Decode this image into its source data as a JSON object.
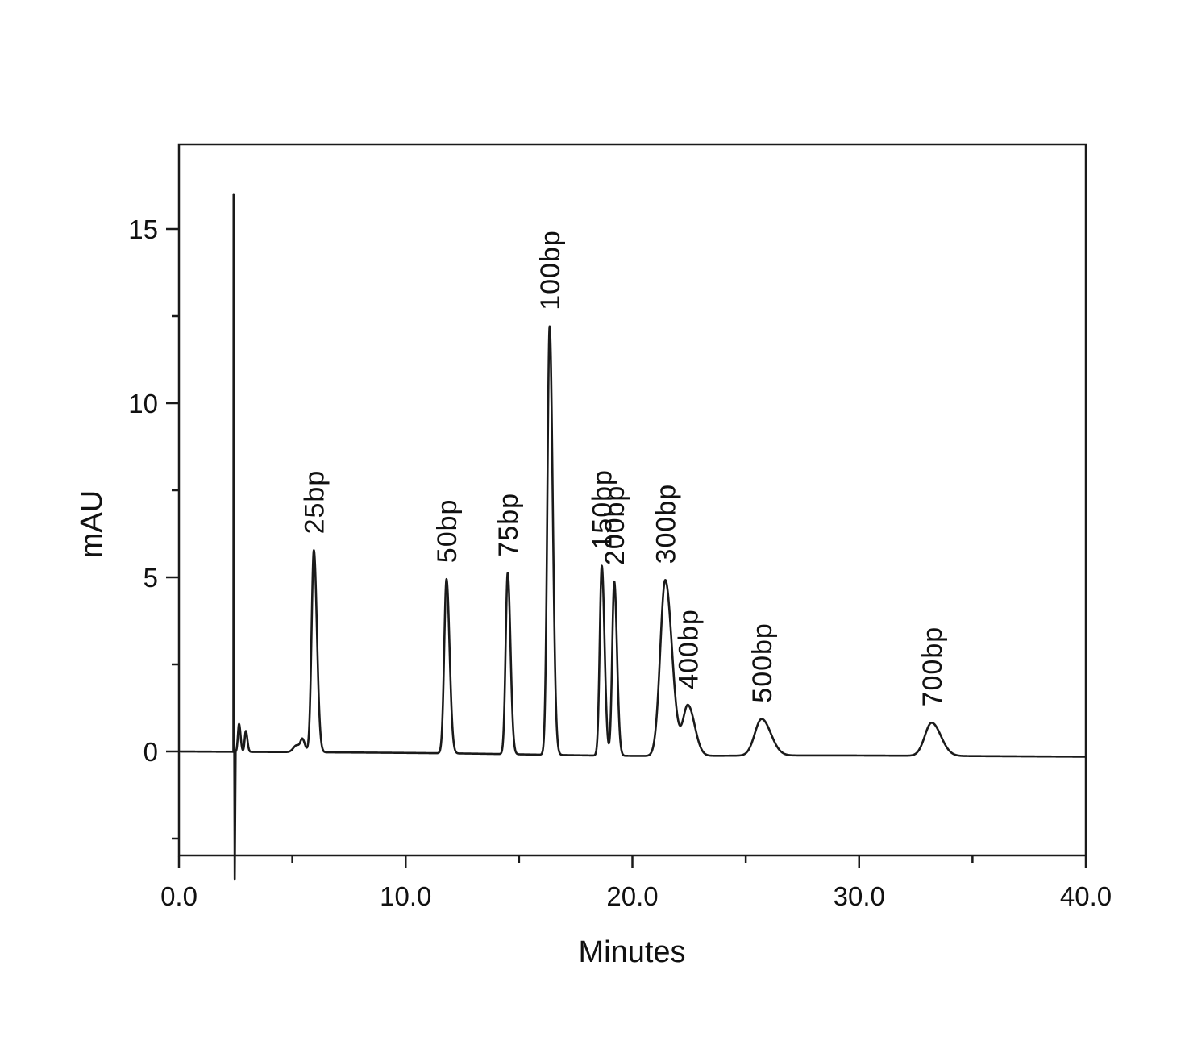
{
  "chart_data": {
    "type": "line",
    "title": "",
    "xlabel": "Minutes",
    "ylabel": "mAU",
    "xlim": [
      0,
      40
    ],
    "ylim": [
      -3,
      17.5
    ],
    "x_ticks": [
      0,
      10,
      20,
      30,
      40
    ],
    "x_tick_labels": [
      "0.0",
      "10.0",
      "20.0",
      "30.0",
      "40.0"
    ],
    "x_minor_step": 5,
    "y_ticks": [
      0,
      5,
      10,
      15
    ],
    "y_tick_labels": [
      "0",
      "5",
      "10",
      "15"
    ],
    "y_minor_step": 2.5,
    "grid": false,
    "legend": "none",
    "line_color": "#1a1a1a",
    "baseline": {
      "start": 0.0,
      "end": -0.15,
      "drift_dip_at": 20,
      "drift_dip_depth": 0.05
    },
    "injection_spike": {
      "x": 2.4,
      "max": 16.0,
      "min": -3.7
    },
    "peaks": [
      {
        "x": 2.65,
        "height": 0.8,
        "width": 0.05,
        "label": ""
      },
      {
        "x": 2.95,
        "height": 0.6,
        "width": 0.05,
        "label": ""
      },
      {
        "x": 5.2,
        "height": 0.2,
        "width": 0.15,
        "label": ""
      },
      {
        "x": 5.45,
        "height": 0.3,
        "width": 0.08,
        "label": ""
      },
      {
        "x": 5.95,
        "height": 5.8,
        "width": 0.1,
        "label": "25bp"
      },
      {
        "x": 11.8,
        "height": 5.0,
        "width": 0.1,
        "label": "50bp"
      },
      {
        "x": 14.5,
        "height": 5.2,
        "width": 0.09,
        "label": "75bp"
      },
      {
        "x": 16.35,
        "height": 12.3,
        "width": 0.1,
        "label": "100bp"
      },
      {
        "x": 18.65,
        "height": 5.45,
        "width": 0.09,
        "label": "150bp"
      },
      {
        "x": 19.2,
        "height": 5.0,
        "width": 0.09,
        "label": "200bp"
      },
      {
        "x": 21.45,
        "height": 5.05,
        "width": 0.22,
        "label": "300bp"
      },
      {
        "x": 22.45,
        "height": 1.45,
        "width": 0.22,
        "label": "400bp"
      },
      {
        "x": 25.7,
        "height": 1.05,
        "width": 0.3,
        "label": "500bp"
      },
      {
        "x": 33.2,
        "height": 0.95,
        "width": 0.3,
        "label": "700bp"
      }
    ]
  }
}
